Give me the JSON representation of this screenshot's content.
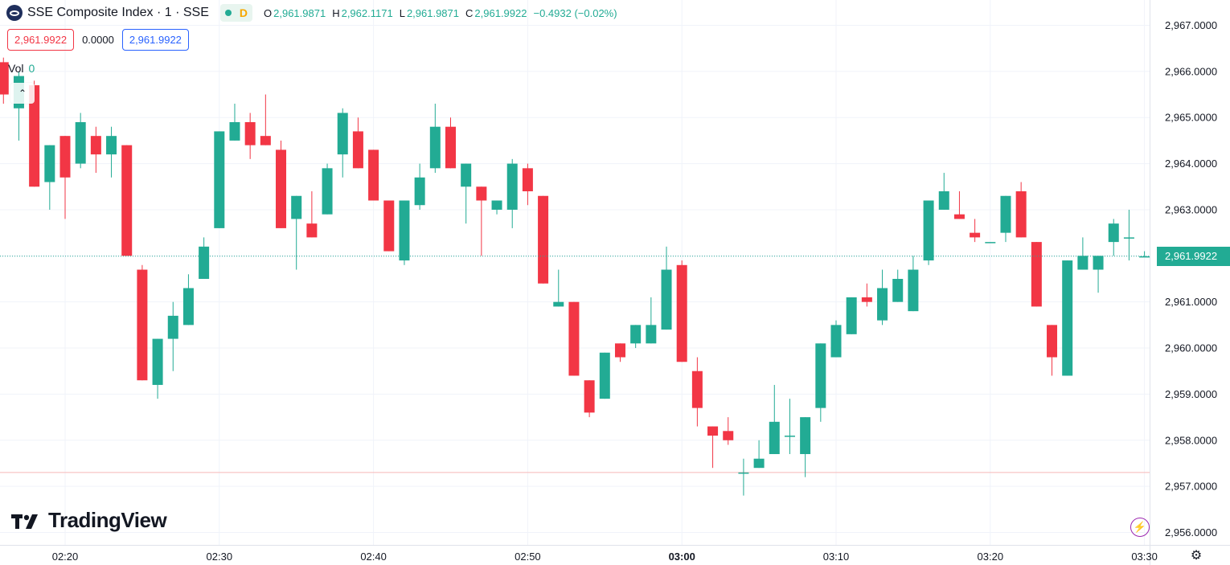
{
  "header": {
    "title": "SSE Composite Index · 1 · SSE",
    "interval_badge": "D",
    "ohlc": {
      "o_label": "O",
      "o": "2,961.9871",
      "h_label": "H",
      "h": "2,962.1171",
      "l_label": "L",
      "l": "2,961.9871",
      "c_label": "C",
      "c": "2,961.9922",
      "change": "−0.4932 (−0.02%)"
    }
  },
  "price_boxes": {
    "bid": "2,961.9922",
    "spread": "0.0000",
    "ask": "2,961.9922"
  },
  "volume": {
    "label": "Vol",
    "value": "0"
  },
  "last_price_label": "2,961.9922",
  "brand": "TradingView",
  "colors": {
    "up": "#22ab94",
    "down": "#f23645",
    "grid": "#f0f3fa",
    "accent": "#9c27b0"
  },
  "chart_data": {
    "type": "candlestick",
    "ylim": [
      2955.8,
      2967.35
    ],
    "y_ticks": [
      "2,956.0000",
      "2,957.0000",
      "2,958.0000",
      "2,959.0000",
      "2,960.0000",
      "2,961.0000",
      "2,962.0000",
      "2,963.0000",
      "2,964.0000",
      "2,965.0000",
      "2,966.0000",
      "2,967.0000"
    ],
    "y_tick_values": [
      2956,
      2957,
      2958,
      2959,
      2960,
      2961,
      2962,
      2963,
      2964,
      2965,
      2966,
      2967
    ],
    "x_ticks": [
      "02:20",
      "02:30",
      "02:40",
      "02:50",
      "03:00",
      "03:10",
      "03:20",
      "03:30"
    ],
    "x_tick_minutes": [
      20,
      30,
      40,
      50,
      60,
      70,
      80,
      90
    ],
    "bold_x_tick": "03:00",
    "last_price": 2961.9922,
    "low_line": 2957.3,
    "candles_minute_offset": 0,
    "candles": [
      {
        "t": 16,
        "o": 2966.2,
        "h": 2966.3,
        "l": 2965.3,
        "c": 2965.5
      },
      {
        "t": 17,
        "o": 2965.2,
        "h": 2966.0,
        "l": 2964.5,
        "c": 2965.9
      },
      {
        "t": 18,
        "o": 2965.7,
        "h": 2965.8,
        "l": 2963.5,
        "c": 2963.5
      },
      {
        "t": 19,
        "o": 2963.6,
        "h": 2964.4,
        "l": 2963.0,
        "c": 2964.4
      },
      {
        "t": 20,
        "o": 2964.6,
        "h": 2964.6,
        "l": 2962.8,
        "c": 2963.7
      },
      {
        "t": 21,
        "o": 2964.0,
        "h": 2965.1,
        "l": 2963.9,
        "c": 2964.9
      },
      {
        "t": 22,
        "o": 2964.6,
        "h": 2964.8,
        "l": 2963.8,
        "c": 2964.2
      },
      {
        "t": 23,
        "o": 2964.2,
        "h": 2964.8,
        "l": 2963.7,
        "c": 2964.6
      },
      {
        "t": 24,
        "o": 2964.4,
        "h": 2964.4,
        "l": 2962.0,
        "c": 2962.0
      },
      {
        "t": 25,
        "o": 2961.7,
        "h": 2961.8,
        "l": 2959.3,
        "c": 2959.3
      },
      {
        "t": 26,
        "o": 2959.2,
        "h": 2960.2,
        "l": 2958.9,
        "c": 2960.2
      },
      {
        "t": 27,
        "o": 2960.2,
        "h": 2961.0,
        "l": 2959.5,
        "c": 2960.7
      },
      {
        "t": 28,
        "o": 2960.5,
        "h": 2961.6,
        "l": 2960.5,
        "c": 2961.3
      },
      {
        "t": 29,
        "o": 2961.5,
        "h": 2962.4,
        "l": 2961.5,
        "c": 2962.2
      },
      {
        "t": 30,
        "o": 2962.6,
        "h": 2964.7,
        "l": 2962.6,
        "c": 2964.7
      },
      {
        "t": 31,
        "o": 2964.5,
        "h": 2965.3,
        "l": 2964.5,
        "c": 2964.9
      },
      {
        "t": 32,
        "o": 2964.9,
        "h": 2965.1,
        "l": 2964.1,
        "c": 2964.4
      },
      {
        "t": 33,
        "o": 2964.6,
        "h": 2965.5,
        "l": 2964.4,
        "c": 2964.4
      },
      {
        "t": 34,
        "o": 2964.3,
        "h": 2964.5,
        "l": 2962.6,
        "c": 2962.6
      },
      {
        "t": 35,
        "o": 2962.8,
        "h": 2963.3,
        "l": 2961.7,
        "c": 2963.3
      },
      {
        "t": 36,
        "o": 2962.7,
        "h": 2963.4,
        "l": 2962.4,
        "c": 2962.4
      },
      {
        "t": 37,
        "o": 2962.9,
        "h": 2964.0,
        "l": 2962.9,
        "c": 2963.9
      },
      {
        "t": 38,
        "o": 2964.2,
        "h": 2965.2,
        "l": 2963.7,
        "c": 2965.1
      },
      {
        "t": 39,
        "o": 2964.7,
        "h": 2965.0,
        "l": 2963.9,
        "c": 2963.9
      },
      {
        "t": 40,
        "o": 2964.3,
        "h": 2964.3,
        "l": 2963.2,
        "c": 2963.2
      },
      {
        "t": 41,
        "o": 2963.2,
        "h": 2963.2,
        "l": 2962.1,
        "c": 2962.1
      },
      {
        "t": 42,
        "o": 2961.9,
        "h": 2963.2,
        "l": 2961.8,
        "c": 2963.2
      },
      {
        "t": 43,
        "o": 2963.1,
        "h": 2964.0,
        "l": 2963.0,
        "c": 2963.7
      },
      {
        "t": 44,
        "o": 2963.9,
        "h": 2965.3,
        "l": 2963.8,
        "c": 2964.8
      },
      {
        "t": 45,
        "o": 2964.8,
        "h": 2965.0,
        "l": 2963.9,
        "c": 2963.9
      },
      {
        "t": 46,
        "o": 2963.5,
        "h": 2964.0,
        "l": 2962.7,
        "c": 2964.0
      },
      {
        "t": 47,
        "o": 2963.5,
        "h": 2963.5,
        "l": 2962.0,
        "c": 2963.2
      },
      {
        "t": 48,
        "o": 2963.0,
        "h": 2963.2,
        "l": 2962.9,
        "c": 2963.2
      },
      {
        "t": 49,
        "o": 2963.0,
        "h": 2964.1,
        "l": 2962.6,
        "c": 2964.0
      },
      {
        "t": 50,
        "o": 2963.9,
        "h": 2964.0,
        "l": 2963.1,
        "c": 2963.4
      },
      {
        "t": 51,
        "o": 2963.3,
        "h": 2963.3,
        "l": 2961.4,
        "c": 2961.4
      },
      {
        "t": 52,
        "o": 2960.9,
        "h": 2961.7,
        "l": 2960.9,
        "c": 2961.0
      },
      {
        "t": 53,
        "o": 2961.0,
        "h": 2961.0,
        "l": 2959.4,
        "c": 2959.4
      },
      {
        "t": 54,
        "o": 2959.3,
        "h": 2959.3,
        "l": 2958.5,
        "c": 2958.6
      },
      {
        "t": 55,
        "o": 2958.9,
        "h": 2959.9,
        "l": 2958.9,
        "c": 2959.9
      },
      {
        "t": 56,
        "o": 2960.1,
        "h": 2960.1,
        "l": 2959.7,
        "c": 2959.8
      },
      {
        "t": 57,
        "o": 2960.1,
        "h": 2960.5,
        "l": 2960.0,
        "c": 2960.5
      },
      {
        "t": 58,
        "o": 2960.1,
        "h": 2961.1,
        "l": 2960.1,
        "c": 2960.5
      },
      {
        "t": 59,
        "o": 2960.4,
        "h": 2962.2,
        "l": 2960.4,
        "c": 2961.7
      },
      {
        "t": 60,
        "o": 2961.8,
        "h": 2961.9,
        "l": 2959.7,
        "c": 2959.7
      },
      {
        "t": 61,
        "o": 2959.5,
        "h": 2959.8,
        "l": 2958.3,
        "c": 2958.7
      },
      {
        "t": 62,
        "o": 2958.3,
        "h": 2958.3,
        "l": 2957.4,
        "c": 2958.1
      },
      {
        "t": 63,
        "o": 2958.2,
        "h": 2958.5,
        "l": 2957.9,
        "c": 2958.0
      },
      {
        "t": 64,
        "o": 2957.3,
        "h": 2957.6,
        "l": 2956.8,
        "c": 2957.3
      },
      {
        "t": 65,
        "o": 2957.4,
        "h": 2958.0,
        "l": 2957.4,
        "c": 2957.6
      },
      {
        "t": 66,
        "o": 2957.7,
        "h": 2959.2,
        "l": 2957.7,
        "c": 2958.4
      },
      {
        "t": 67,
        "o": 2958.1,
        "h": 2958.9,
        "l": 2957.7,
        "c": 2958.1
      },
      {
        "t": 68,
        "o": 2957.7,
        "h": 2958.5,
        "l": 2957.2,
        "c": 2958.5
      },
      {
        "t": 69,
        "o": 2958.7,
        "h": 2960.1,
        "l": 2958.4,
        "c": 2960.1
      },
      {
        "t": 70,
        "o": 2959.8,
        "h": 2960.6,
        "l": 2959.8,
        "c": 2960.5
      },
      {
        "t": 71,
        "o": 2960.3,
        "h": 2961.1,
        "l": 2960.3,
        "c": 2961.1
      },
      {
        "t": 72,
        "o": 2961.1,
        "h": 2961.4,
        "l": 2960.9,
        "c": 2961.0
      },
      {
        "t": 73,
        "o": 2960.6,
        "h": 2961.7,
        "l": 2960.5,
        "c": 2961.3
      },
      {
        "t": 74,
        "o": 2961.0,
        "h": 2961.7,
        "l": 2961.0,
        "c": 2961.5
      },
      {
        "t": 75,
        "o": 2960.8,
        "h": 2962.0,
        "l": 2960.8,
        "c": 2961.7
      },
      {
        "t": 76,
        "o": 2961.9,
        "h": 2963.2,
        "l": 2961.8,
        "c": 2963.2
      },
      {
        "t": 77,
        "o": 2963.0,
        "h": 2963.8,
        "l": 2963.0,
        "c": 2963.4
      },
      {
        "t": 78,
        "o": 2962.9,
        "h": 2963.4,
        "l": 2962.8,
        "c": 2962.8
      },
      {
        "t": 79,
        "o": 2962.5,
        "h": 2962.8,
        "l": 2962.3,
        "c": 2962.4
      },
      {
        "t": 80,
        "o": 2962.3,
        "h": 2962.3,
        "l": 2962.3,
        "c": 2962.3
      },
      {
        "t": 81,
        "o": 2962.5,
        "h": 2963.3,
        "l": 2962.3,
        "c": 2963.3
      },
      {
        "t": 82,
        "o": 2963.4,
        "h": 2963.6,
        "l": 2962.4,
        "c": 2962.4
      },
      {
        "t": 83,
        "o": 2962.3,
        "h": 2962.3,
        "l": 2960.9,
        "c": 2960.9
      },
      {
        "t": 84,
        "o": 2960.5,
        "h": 2960.5,
        "l": 2959.4,
        "c": 2959.8
      },
      {
        "t": 85,
        "o": 2959.4,
        "h": 2961.9,
        "l": 2959.4,
        "c": 2961.9
      },
      {
        "t": 86,
        "o": 2961.7,
        "h": 2962.4,
        "l": 2961.7,
        "c": 2962.0
      },
      {
        "t": 87,
        "o": 2961.7,
        "h": 2962.0,
        "l": 2961.2,
        "c": 2962.0
      },
      {
        "t": 88,
        "o": 2962.3,
        "h": 2962.8,
        "l": 2962.0,
        "c": 2962.7
      },
      {
        "t": 89,
        "o": 2962.4,
        "h": 2963.0,
        "l": 2961.9,
        "c": 2962.4
      },
      {
        "t": 90,
        "o": 2961.99,
        "h": 2962.1,
        "l": 2961.98,
        "c": 2961.99
      }
    ]
  }
}
